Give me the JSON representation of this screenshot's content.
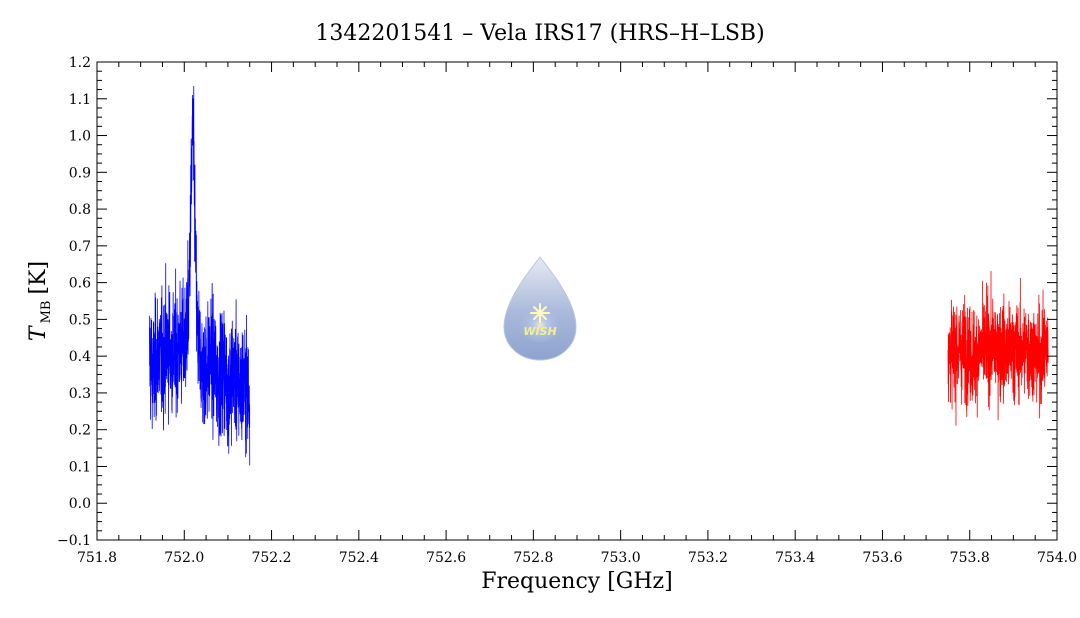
{
  "chart_data": {
    "type": "line",
    "title": "1342201541 – Vela IRS17 (HRS–H–LSB)",
    "xlabel": "Frequency [GHz]",
    "ylabel": {
      "main": "T",
      "subscript": "MB",
      "unit": "[K]"
    },
    "xlim": [
      751.8,
      754.0
    ],
    "ylim": [
      -0.1,
      1.2
    ],
    "x_ticks": [
      "751.8",
      "752.0",
      "752.2",
      "752.4",
      "752.6",
      "752.8",
      "753.0",
      "753.2",
      "753.4",
      "753.6",
      "753.8",
      "754.0"
    ],
    "y_ticks": [
      "−0.1",
      "0.0",
      "0.1",
      "0.2",
      "0.3",
      "0.4",
      "0.5",
      "0.6",
      "0.7",
      "0.8",
      "0.9",
      "1.0",
      "1.1",
      "1.2"
    ],
    "grid": false,
    "series": [
      {
        "color": "#0000ff",
        "x": [
          751.92,
          751.93,
          751.94,
          751.95,
          751.96,
          751.97,
          751.98,
          751.99,
          752.0,
          752.01,
          752.015,
          752.02,
          752.025,
          752.03,
          752.04,
          752.05,
          752.06,
          752.07,
          752.08,
          752.09,
          752.1,
          752.11,
          752.12,
          752.13,
          752.14,
          752.15
        ],
        "values": [
          0.4,
          0.35,
          0.42,
          0.38,
          0.44,
          0.4,
          0.41,
          0.43,
          0.42,
          0.52,
          0.8,
          1.05,
          0.72,
          0.45,
          0.38,
          0.36,
          0.4,
          0.37,
          0.33,
          0.38,
          0.3,
          0.36,
          0.34,
          0.31,
          0.33,
          0.29
        ]
      },
      {
        "color": "#ff0000",
        "x": [
          753.75,
          753.78,
          753.81,
          753.84,
          753.87,
          753.9,
          753.93,
          753.96,
          753.98
        ],
        "values": [
          0.41,
          0.42,
          0.4,
          0.43,
          0.42,
          0.41,
          0.42,
          0.4,
          0.42
        ]
      }
    ]
  },
  "logo": {
    "text": "WISH"
  }
}
